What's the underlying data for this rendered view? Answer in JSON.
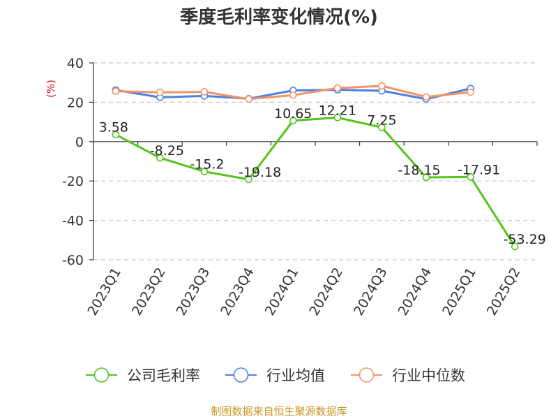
{
  "chart_data": {
    "type": "line",
    "title": "季度毛利率变化情况(%)",
    "ylabel": "(%)",
    "xlabel": "",
    "ylim": [
      -60,
      40
    ],
    "yticks": [
      40,
      20,
      0,
      -20,
      -40,
      -60
    ],
    "grid": true,
    "legend_position": "bottom",
    "categories": [
      "2023Q1",
      "2023Q2",
      "2023Q3",
      "2023Q4",
      "2024Q1",
      "2024Q2",
      "2024Q3",
      "2024Q4",
      "2025Q1",
      "2025Q2"
    ],
    "series": [
      {
        "name": "公司毛利率",
        "color": "#52c41a",
        "values": [
          3.58,
          -8.25,
          -15.2,
          -19.18,
          10.65,
          12.21,
          7.25,
          -18.15,
          -17.91,
          -53.29
        ],
        "labels": [
          "3.58",
          "-8.25",
          "-15.2",
          "-19.18",
          "10.65",
          "12.21",
          "7.25",
          "-18.15",
          "-17.91",
          "-53.29"
        ]
      },
      {
        "name": "行业均值",
        "color": "#4e7fe0",
        "values": [
          26.2,
          22.5,
          23.2,
          21.8,
          26.0,
          26.3,
          25.8,
          21.6,
          27.0,
          null
        ]
      },
      {
        "name": "行业中位数",
        "color": "#f39465",
        "values": [
          25.6,
          25.0,
          25.3,
          21.6,
          23.6,
          27.2,
          28.3,
          22.7,
          25.1,
          null
        ]
      }
    ]
  },
  "source": "制图数据来自恒生聚源数据库"
}
